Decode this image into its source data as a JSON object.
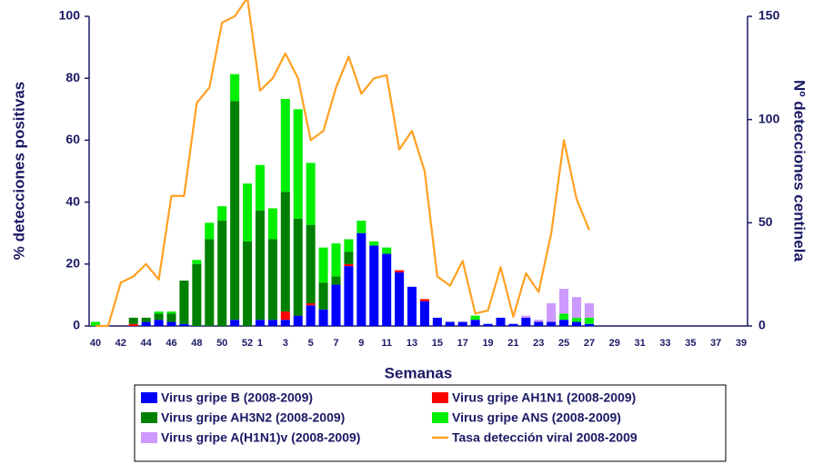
{
  "chart_data": {
    "type": "bar",
    "xlabel": "Semanas",
    "ylabel": "% detecciones positivas",
    "y2label": "Nº detecciones centinela",
    "categories": [
      40,
      null,
      42,
      null,
      44,
      null,
      46,
      null,
      48,
      null,
      50,
      null,
      52,
      1,
      null,
      3,
      null,
      5,
      null,
      7,
      null,
      9,
      null,
      11,
      null,
      13,
      null,
      15,
      null,
      17,
      null,
      19,
      null,
      21,
      null,
      23,
      null,
      25,
      null,
      27,
      null,
      29,
      null,
      31,
      null,
      33,
      null,
      35,
      null,
      37,
      null,
      39
    ],
    "ylim": [
      0,
      100
    ],
    "yticks": [
      0,
      20,
      40,
      60,
      80,
      100
    ],
    "y2lim": [
      0,
      150
    ],
    "y2ticks": [
      0,
      50,
      100,
      150
    ],
    "grid": false,
    "legend": "bottom",
    "series": [
      {
        "name": "Virus gripe B (2008-2009)",
        "color": "#0000ff",
        "axis": "y2",
        "values": [
          0,
          0,
          0,
          0,
          2,
          3,
          2,
          1,
          0,
          0,
          0,
          3,
          0,
          3,
          3,
          3,
          5,
          10,
          8,
          20,
          29,
          45,
          39,
          35,
          26,
          19,
          12,
          4,
          2,
          2,
          3,
          1,
          4,
          1,
          4,
          2,
          2,
          3,
          2,
          1,
          0,
          0,
          0,
          0,
          0,
          0,
          0,
          0,
          0,
          0,
          0,
          0
        ]
      },
      {
        "name": "Virus gripe AH1N1 (2008-2009)",
        "color": "#ff0000",
        "axis": "y2",
        "values": [
          0,
          0,
          0,
          1,
          0,
          0,
          0,
          0,
          0,
          0,
          0,
          0,
          0,
          0,
          0,
          4,
          0,
          1,
          0,
          0,
          1,
          0,
          0,
          0,
          1,
          0,
          1,
          0,
          0,
          0,
          0,
          0,
          0,
          0,
          0,
          0,
          0,
          0,
          0,
          0,
          0,
          0,
          0,
          0,
          0,
          0,
          0,
          0,
          0,
          0,
          0,
          0
        ]
      },
      {
        "name": "Virus gripe AH3N2 (2008-2009)",
        "color": "#008000",
        "axis": "y2",
        "values": [
          0,
          0,
          0,
          3,
          2,
          3,
          4,
          21,
          30,
          42,
          51,
          106,
          41,
          53,
          39,
          58,
          47,
          38,
          13,
          4,
          6,
          0,
          0,
          0,
          0,
          0,
          0,
          0,
          0,
          0,
          0,
          0,
          0,
          0,
          0,
          0,
          0,
          0,
          0,
          0,
          0,
          0,
          0,
          0,
          0,
          0,
          0,
          0,
          0,
          0,
          0,
          0
        ]
      },
      {
        "name": "Virus gripe ANS (2008-2009)",
        "color": "#00ee00",
        "axis": "y2",
        "values": [
          2,
          0,
          0,
          0,
          0,
          1,
          1,
          0,
          2,
          8,
          7,
          13,
          28,
          22,
          15,
          45,
          53,
          30,
          17,
          16,
          6,
          6,
          2,
          3,
          0,
          0,
          0,
          0,
          0,
          0,
          2,
          0,
          0,
          0,
          0,
          0,
          0,
          3,
          2,
          3,
          0,
          0,
          0,
          0,
          0,
          0,
          0,
          0,
          0,
          0,
          0,
          0
        ]
      },
      {
        "name": "Virus gripe A(H1N1)v (2008-2009)",
        "color": "#cc99ff",
        "axis": "y2",
        "values": [
          0,
          0,
          0,
          0,
          0,
          0,
          0,
          0,
          0,
          0,
          0,
          0,
          0,
          0,
          0,
          0,
          0,
          0,
          0,
          0,
          0,
          0,
          0,
          0,
          0,
          0,
          0,
          0,
          0,
          0,
          0,
          0,
          0,
          0,
          1,
          1,
          9,
          12,
          10,
          7,
          0,
          0,
          0,
          0,
          0,
          0,
          0,
          0,
          0,
          0,
          0,
          0
        ]
      },
      {
        "name": "Tasa detección viral 2008-2009",
        "color": "#ffa020",
        "axis": "y",
        "type": "line",
        "values": [
          0,
          0,
          14,
          16,
          20,
          15,
          42,
          42,
          72,
          77,
          98,
          100,
          106,
          76,
          80,
          88,
          80,
          60,
          63,
          77,
          87,
          75,
          80,
          81,
          57,
          63,
          50,
          16,
          13,
          21,
          4,
          5,
          19,
          3,
          17,
          11,
          30,
          60,
          41,
          31,
          null,
          null,
          null,
          null,
          null,
          null,
          null,
          null,
          null,
          null,
          null,
          null
        ]
      }
    ]
  }
}
